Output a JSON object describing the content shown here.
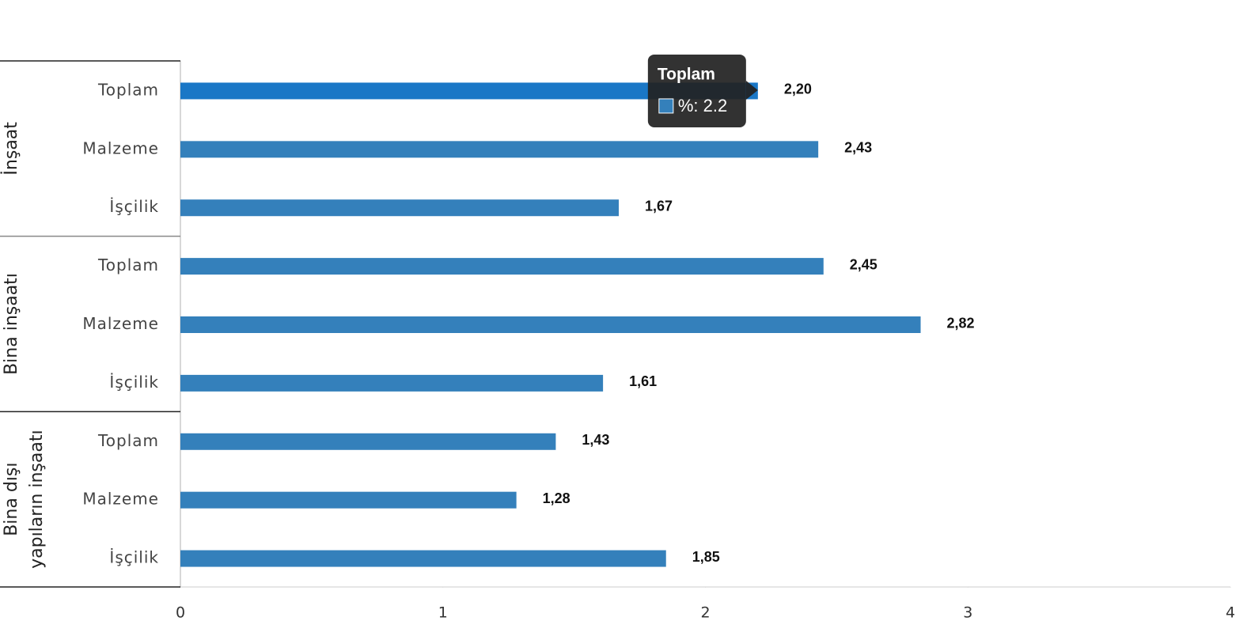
{
  "chart_data": {
    "type": "hbar",
    "groups": [
      [
        "İnşaat"
      ],
      [
        "Bina inşaatı"
      ],
      [
        "Bina dışı",
        "yapıların inşaatı"
      ]
    ],
    "categories": [
      "Toplam",
      "Malzeme",
      "İşçilik",
      "Toplam",
      "Malzeme",
      "İşçilik",
      "Toplam",
      "Malzeme",
      "İşçilik"
    ],
    "values": [
      2.2,
      2.43,
      1.67,
      2.45,
      2.82,
      1.61,
      1.43,
      1.28,
      1.85
    ],
    "value_labels": [
      "2,20",
      "2,43",
      "1,67",
      "2,45",
      "2,82",
      "1,61",
      "1,43",
      "1,28",
      "1,85"
    ],
    "color": "#3480bb",
    "highlight_color": "#1a77c6",
    "xlim": [
      0,
      4
    ],
    "xticks": [
      0,
      1,
      2,
      3,
      4
    ],
    "tooltip_label": "%: 2.2"
  }
}
